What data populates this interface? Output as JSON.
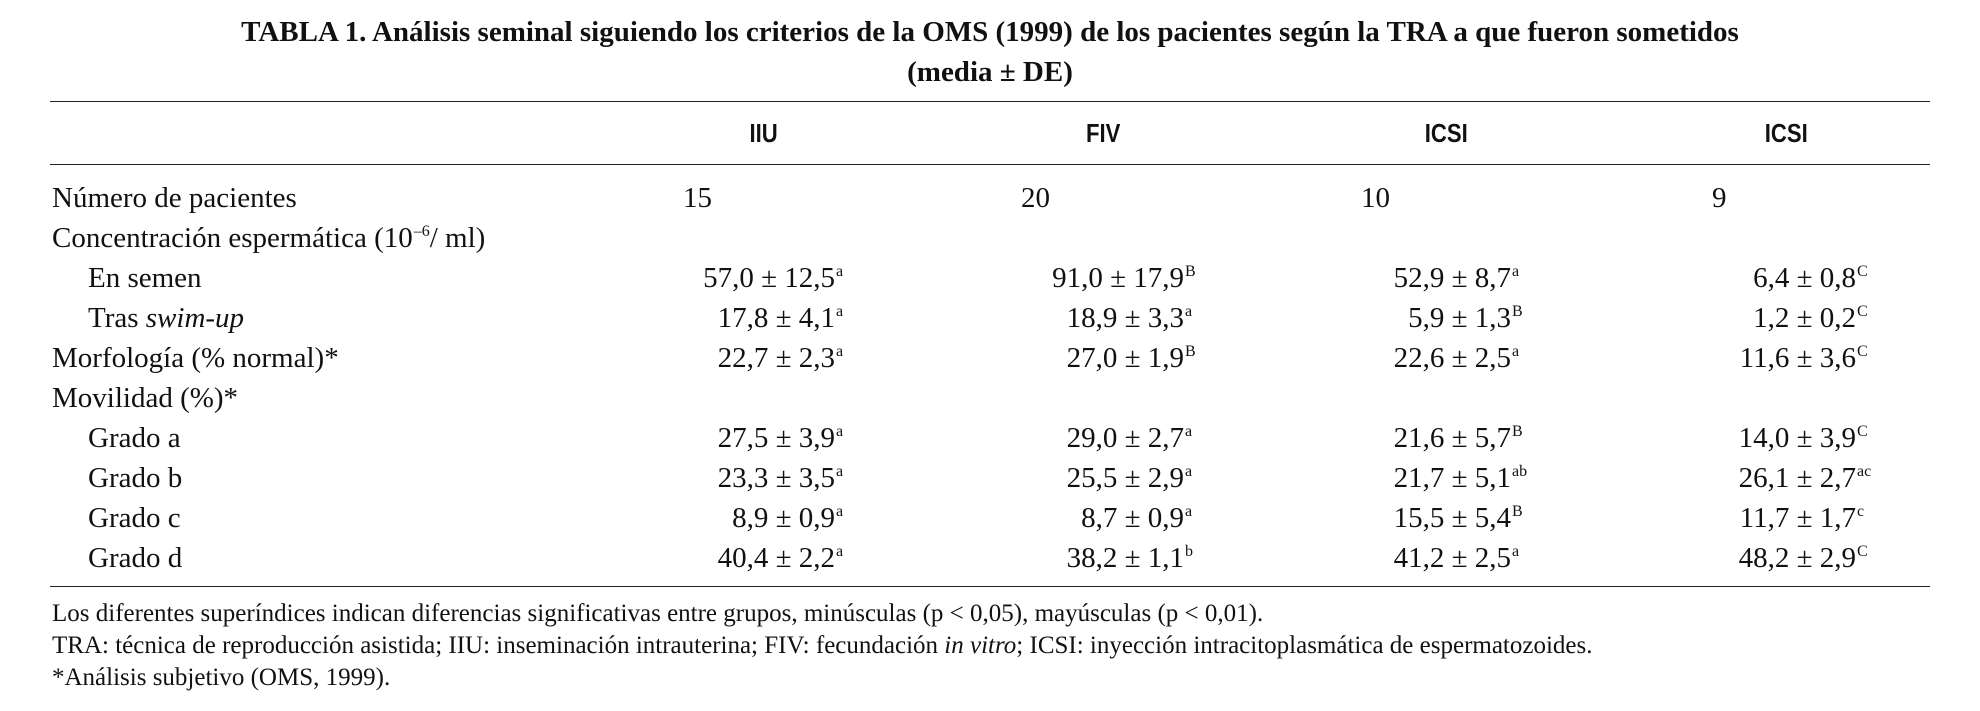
{
  "title_line1": "TABLA 1. Análisis seminal siguiendo los criterios de la OMS (1999) de los pacientes según la TRA a que fueron sometidos",
  "title_line2": "(media ± DE)",
  "columns": [
    "IIU",
    "FIV",
    "ICSI",
    "ICSI"
  ],
  "rows": {
    "pacientes": {
      "label": "Número de pacientes",
      "values": [
        "15",
        "20",
        "10",
        "9"
      ]
    },
    "concentracion": {
      "label_pre": "Concentración espermática (10",
      "label_sup": "–6",
      "label_post": "/ ml)"
    },
    "semen": {
      "label": "En semen",
      "values": [
        "57,0 ± 12,5",
        "91,0 ± 17,9",
        "52,9 ± 8,7",
        "6,4 ± 0,8"
      ],
      "sups": [
        "a",
        "B",
        "a",
        "C"
      ]
    },
    "swim": {
      "label_pre": "Tras ",
      "label_em": "swim-up",
      "values": [
        "17,8 ± 4,1",
        "18,9 ± 3,3",
        "5,9 ± 1,3",
        "1,2 ± 0,2"
      ],
      "sups": [
        "a",
        "a",
        "B",
        "C"
      ]
    },
    "morfologia": {
      "label": "Morfología (% normal)*",
      "values": [
        "22,7 ± 2,3",
        "27,0 ± 1,9",
        "22,6 ± 2,5",
        "11,6 ± 3,6"
      ],
      "sups": [
        "a",
        "B",
        "a",
        "C"
      ]
    },
    "movilidad": {
      "label": "Movilidad (%)*"
    },
    "grado_a": {
      "label": "Grado a",
      "values": [
        "27,5 ± 3,9",
        "29,0 ± 2,7",
        "21,6 ± 5,7",
        "14,0 ± 3,9"
      ],
      "sups": [
        "a",
        "a",
        "B",
        "C"
      ]
    },
    "grado_b": {
      "label": "Grado b",
      "values": [
        "23,3 ± 3,5",
        "25,5 ± 2,9",
        "21,7 ± 5,1",
        "26,1 ± 2,7"
      ],
      "sups": [
        "a",
        "a",
        "ab",
        "ac"
      ]
    },
    "grado_c": {
      "label": "Grado c",
      "values": [
        "8,9 ± 0,9",
        "8,7 ± 0,9",
        "15,5 ± 5,4",
        "11,7 ± 1,7"
      ],
      "sups": [
        "a",
        "a",
        "B",
        "c"
      ]
    },
    "grado_d": {
      "label": "Grado d",
      "values": [
        "40,4 ± 2,2",
        "38,2 ± 1,1",
        "41,2 ± 2,5",
        "48,2 ± 2,9"
      ],
      "sups": [
        "a",
        "b",
        "a",
        "C"
      ]
    }
  },
  "notes": {
    "line1": "Los diferentes superíndices indican diferencias significativas entre grupos, minúsculas (p < 0,05), mayúsculas (p < 0,01).",
    "line2_pre": "TRA: técnica de reproducción asistida; IIU: inseminación intrauterina; FIV: fecundación ",
    "line2_em": "in vitro",
    "line2_post": "; ICSI: inyección intracitoplasmática de espermatozoides.",
    "line3": "*Análisis subjetivo (OMS, 1999)."
  }
}
